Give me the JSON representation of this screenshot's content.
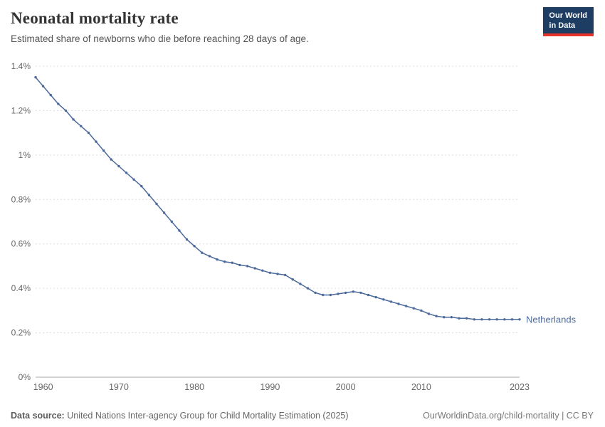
{
  "header": {
    "title": "Neonatal mortality rate",
    "subtitle": "Estimated share of newborns who die before reaching 28 days of age.",
    "logo": {
      "line1": "Our World",
      "line2": "in Data",
      "bg_color": "#1d3d63",
      "accent_color": "#e5332a"
    }
  },
  "chart_data": {
    "type": "line",
    "title": "Neonatal mortality rate",
    "subtitle": "Estimated share of newborns who die before reaching 28 days of age.",
    "xlabel": "",
    "ylabel": "",
    "grid": true,
    "legend_position": "end-of-line",
    "xlim": [
      1959,
      2023
    ],
    "ylim": [
      0,
      1.4
    ],
    "x_ticks": [
      1960,
      1970,
      1980,
      1990,
      2000,
      2010,
      2023
    ],
    "y_ticks": [
      {
        "value": 0,
        "label": "0%"
      },
      {
        "value": 0.2,
        "label": "0.2%"
      },
      {
        "value": 0.4,
        "label": "0.4%"
      },
      {
        "value": 0.6,
        "label": "0.6%"
      },
      {
        "value": 0.8,
        "label": "0.8%"
      },
      {
        "value": 1.0,
        "label": "1%"
      },
      {
        "value": 1.2,
        "label": "1.2%"
      },
      {
        "value": 1.4,
        "label": "1.4%"
      }
    ],
    "unit": "%",
    "series": [
      {
        "name": "Netherlands",
        "color": "#4c6a9c",
        "x": [
          1959,
          1960,
          1961,
          1962,
          1963,
          1964,
          1965,
          1966,
          1967,
          1968,
          1969,
          1970,
          1971,
          1972,
          1973,
          1974,
          1975,
          1976,
          1977,
          1978,
          1979,
          1980,
          1981,
          1982,
          1983,
          1984,
          1985,
          1986,
          1987,
          1988,
          1989,
          1990,
          1991,
          1992,
          1993,
          1994,
          1995,
          1996,
          1997,
          1998,
          1999,
          2000,
          2001,
          2002,
          2003,
          2004,
          2005,
          2006,
          2007,
          2008,
          2009,
          2010,
          2011,
          2012,
          2013,
          2014,
          2015,
          2016,
          2017,
          2018,
          2019,
          2020,
          2021,
          2022,
          2023
        ],
        "values": [
          1.35,
          1.31,
          1.27,
          1.23,
          1.2,
          1.16,
          1.13,
          1.1,
          1.06,
          1.02,
          0.98,
          0.95,
          0.92,
          0.89,
          0.86,
          0.82,
          0.78,
          0.74,
          0.7,
          0.66,
          0.62,
          0.59,
          0.56,
          0.545,
          0.53,
          0.52,
          0.515,
          0.505,
          0.5,
          0.49,
          0.48,
          0.47,
          0.465,
          0.46,
          0.44,
          0.42,
          0.4,
          0.38,
          0.37,
          0.37,
          0.375,
          0.38,
          0.385,
          0.38,
          0.37,
          0.36,
          0.35,
          0.34,
          0.33,
          0.32,
          0.31,
          0.3,
          0.285,
          0.275,
          0.27,
          0.27,
          0.265,
          0.265,
          0.26,
          0.26,
          0.26,
          0.26,
          0.26,
          0.26,
          0.26
        ]
      }
    ]
  },
  "footer": {
    "source_label": "Data source:",
    "source_text": "United Nations Inter-agency Group for Child Mortality Estimation (2025)",
    "attribution": "OurWorldinData.org/child-mortality | CC BY"
  }
}
